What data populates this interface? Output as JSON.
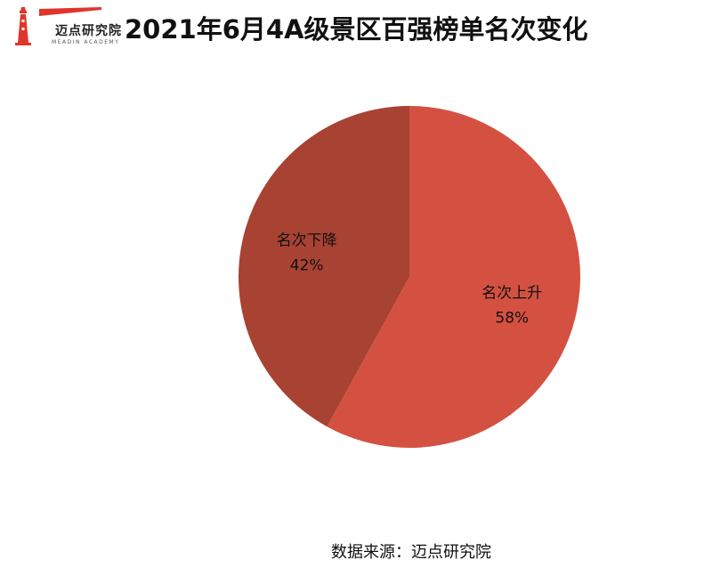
{
  "header": {
    "logo_text": "迈点研究院",
    "logo_subtext": "MEADIN ACADEMY",
    "title": "2021年6月4A级景区百强榜单名次变化"
  },
  "colors": {
    "logo_red": "#e0352b",
    "slice_up": "#d45142",
    "slice_down": "#a84232"
  },
  "chart_data": {
    "type": "pie",
    "title": "2021年6月4A级景区百强榜单名次变化",
    "start_angle_deg": 0,
    "direction": "clockwise",
    "slices": [
      {
        "label": "名次上升",
        "value": 58,
        "display": "58%",
        "color": "#d45142"
      },
      {
        "label": "名次下降",
        "value": 42,
        "display": "42%",
        "color": "#a84232"
      }
    ]
  },
  "footer": {
    "source": "数据来源：迈点研究院"
  }
}
